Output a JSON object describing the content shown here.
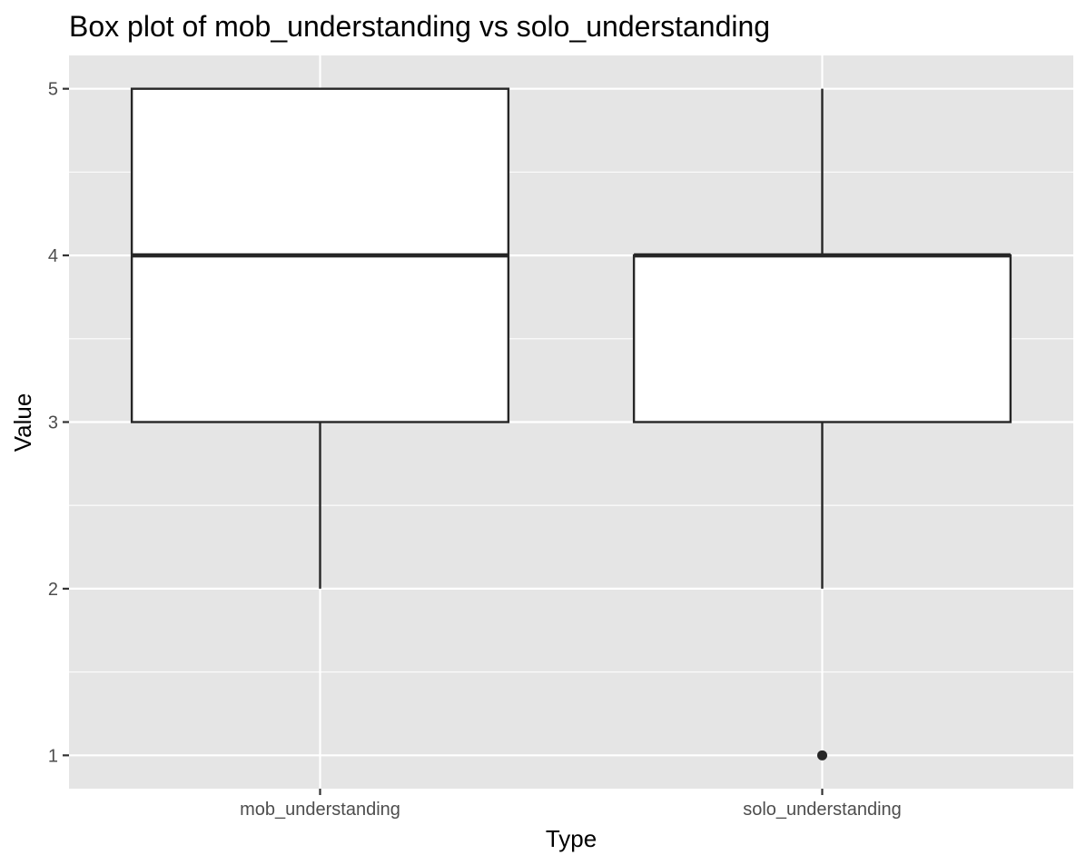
{
  "chart_data": {
    "type": "box",
    "title": "Box plot of mob_understanding vs solo_understanding",
    "xlabel": "Type",
    "ylabel": "Value",
    "categories": [
      "mob_understanding",
      "solo_understanding"
    ],
    "boxes": [
      {
        "category": "mob_understanding",
        "lower_whisker": 2,
        "q1": 3,
        "median": 4,
        "q3": 5,
        "upper_whisker": 5,
        "outliers": []
      },
      {
        "category": "solo_understanding",
        "lower_whisker": 2,
        "q1": 3,
        "median": 4,
        "q3": 4,
        "upper_whisker": 5,
        "outliers": [
          1
        ]
      }
    ],
    "ylim": [
      0.8,
      5.2
    ],
    "y_ticks": [
      1,
      2,
      3,
      4,
      5
    ],
    "y_tick_labels": [
      "1",
      "2",
      "3",
      "4",
      "5"
    ],
    "grid": true,
    "legend": "none",
    "colors": {
      "panel_background": "#e5e5e5",
      "grid_major": "#ffffff",
      "box_fill": "#ffffff",
      "box_stroke": "#262626",
      "tick_label": "#4d4d4d",
      "tick_mark": "#333333"
    }
  }
}
